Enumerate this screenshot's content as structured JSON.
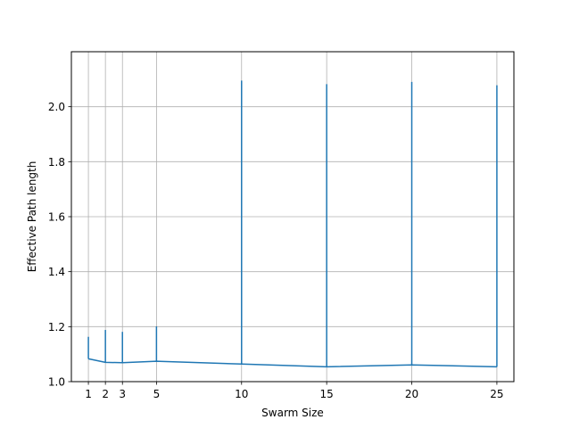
{
  "chart_data": {
    "type": "line",
    "xlabel": "Swarm Size",
    "ylabel": "Effective Path length",
    "xlim": [
      0,
      26
    ],
    "ylim": [
      1.0,
      2.2
    ],
    "grid": true,
    "x_ticks": [
      1,
      2,
      3,
      5,
      10,
      15,
      20,
      25
    ],
    "x_tick_labels": [
      "1",
      "2",
      "3",
      "5",
      "10",
      "15",
      "20",
      "25"
    ],
    "y_ticks": [
      1.0,
      1.2,
      1.4,
      1.6,
      1.8,
      2.0
    ],
    "y_tick_labels": [
      "1.0",
      "1.2",
      "1.4",
      "1.6",
      "1.8",
      "2.0"
    ],
    "series": [
      {
        "color": "#1f77b4",
        "x": [
          1,
          2,
          3,
          5,
          10,
          15,
          20,
          25
        ],
        "y": [
          1.083,
          1.07,
          1.069,
          1.074,
          1.064,
          1.054,
          1.061,
          1.054
        ],
        "error_upper": [
          1.163,
          1.188,
          1.181,
          1.201,
          2.095,
          2.082,
          2.09,
          2.078
        ]
      }
    ]
  }
}
